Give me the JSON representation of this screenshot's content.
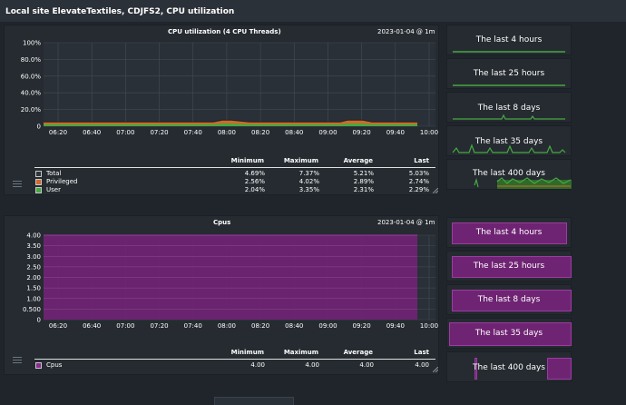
{
  "header": {
    "title": "Local site ElevateTextiles, CDJFS2, CPU utilization"
  },
  "graphs": [
    {
      "title": "CPU utilization (4 CPU Threads)",
      "date": "2023-01-04 @ 1m",
      "yticks": [
        "100%",
        "80.0%",
        "60.0%",
        "40.0%",
        "20.0%",
        "0"
      ],
      "xticks": [
        "06:20",
        "06:40",
        "07:00",
        "07:20",
        "07:40",
        "08:00",
        "08:20",
        "08:40",
        "09:00",
        "09:20",
        "09:40",
        "10:00"
      ],
      "table": {
        "headers": [
          "Minimum",
          "Maximum",
          "Average",
          "Last"
        ],
        "rows": [
          {
            "label": "Total",
            "color": "#2e3540",
            "values": [
              "4.69%",
              "7.37%",
              "5.21%",
              "5.03%"
            ]
          },
          {
            "label": "Privileged",
            "color": "#d3682a",
            "values": [
              "2.56%",
              "4.02%",
              "2.89%",
              "2.74%"
            ]
          },
          {
            "label": "User",
            "color": "#47a840",
            "values": [
              "2.04%",
              "3.35%",
              "2.31%",
              "2.29%"
            ]
          }
        ]
      }
    },
    {
      "title": "Cpus",
      "date": "2023-01-04 @ 1m",
      "yticks": [
        "4.00",
        "3.50",
        "3.00",
        "2.50",
        "2.00",
        "1.50",
        "1.00",
        "0.500",
        "0"
      ],
      "xticks": [
        "06:20",
        "06:40",
        "07:00",
        "07:20",
        "07:40",
        "08:00",
        "08:20",
        "08:40",
        "09:00",
        "09:20",
        "09:40",
        "10:00"
      ],
      "table": {
        "headers": [
          "Minimum",
          "Maximum",
          "Average",
          "Last"
        ],
        "rows": [
          {
            "label": "Cpus",
            "color": "#8a2a8e",
            "values": [
              "4.00",
              "4.00",
              "4.00",
              "4.00"
            ]
          }
        ]
      }
    }
  ],
  "timeranges_top": [
    "The last 4 hours",
    "The last 25 hours",
    "The last 8 days",
    "The last 35 days",
    "The last 400 days"
  ],
  "timeranges_bottom": [
    "The last 4 hours",
    "The last 25 hours",
    "The last 8 days",
    "The last 35 days",
    "The last 400 days"
  ],
  "colors": {
    "green": "#47a840",
    "orange": "#d3682a",
    "purple": "#6f2473",
    "purple_border": "#9a3ca0"
  }
}
